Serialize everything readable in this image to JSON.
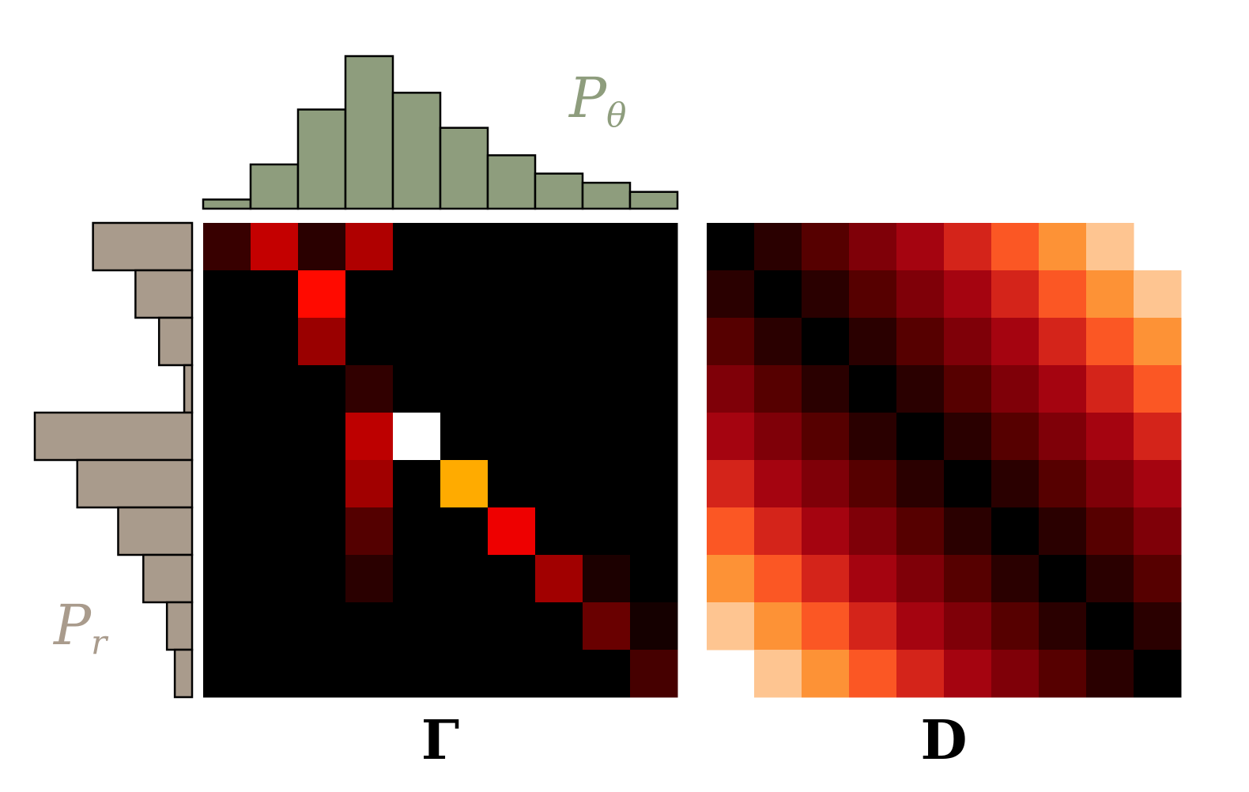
{
  "chart_data": [
    {
      "type": "bar",
      "orientation": "vertical",
      "label_main": "P",
      "label_sub": "θ",
      "color": "#8e9d7d",
      "values": [
        0.06,
        0.29,
        0.65,
        1.0,
        0.76,
        0.53,
        0.35,
        0.23,
        0.17,
        0.11
      ]
    },
    {
      "type": "bar",
      "orientation": "horizontal",
      "label_main": "P",
      "label_sub": "r",
      "color": "#a99b8c",
      "values": [
        0.63,
        0.36,
        0.21,
        0.05,
        1.0,
        0.73,
        0.47,
        0.31,
        0.16,
        0.11
      ]
    },
    {
      "type": "heatmap",
      "title": "Γ",
      "colormap": "hot",
      "matrix": [
        [
          0.08,
          0.28,
          0.06,
          0.25,
          0,
          0,
          0,
          0,
          0,
          0
        ],
        [
          0,
          0,
          0.38,
          0,
          0,
          0,
          0,
          0,
          0,
          0
        ],
        [
          0,
          0,
          0.22,
          0,
          0,
          0,
          0,
          0,
          0,
          0
        ],
        [
          0,
          0,
          0,
          0.07,
          0,
          0,
          0,
          0,
          0,
          0
        ],
        [
          0,
          0,
          0,
          0.27,
          1.0,
          0,
          0,
          0,
          0,
          0
        ],
        [
          0,
          0,
          0,
          0.23,
          0,
          0.62,
          0,
          0,
          0,
          0
        ],
        [
          0,
          0,
          0,
          0.12,
          0,
          0,
          0.34,
          0,
          0,
          0
        ],
        [
          0,
          0,
          0,
          0.06,
          0,
          0,
          0,
          0.23,
          0.04,
          0
        ],
        [
          0,
          0,
          0,
          0,
          0,
          0,
          0,
          0,
          0.15,
          0.03
        ],
        [
          0,
          0,
          0,
          0,
          0,
          0,
          0,
          0,
          0,
          0.1
        ]
      ]
    },
    {
      "type": "heatmap",
      "title": "D",
      "colormap": "hot",
      "matrix": [
        [
          0,
          1,
          2,
          3,
          4,
          5,
          6,
          7,
          8,
          null
        ],
        [
          1,
          0,
          1,
          2,
          3,
          4,
          5,
          6,
          7,
          8
        ],
        [
          2,
          1,
          0,
          1,
          2,
          3,
          4,
          5,
          6,
          7
        ],
        [
          3,
          2,
          1,
          0,
          1,
          2,
          3,
          4,
          5,
          6
        ],
        [
          4,
          3,
          2,
          1,
          0,
          1,
          2,
          3,
          4,
          5
        ],
        [
          5,
          4,
          3,
          2,
          1,
          0,
          1,
          2,
          3,
          4
        ],
        [
          6,
          5,
          4,
          3,
          2,
          1,
          0,
          1,
          2,
          3
        ],
        [
          7,
          6,
          5,
          4,
          3,
          2,
          1,
          0,
          1,
          2
        ],
        [
          8,
          7,
          6,
          5,
          4,
          3,
          2,
          1,
          0,
          1
        ],
        [
          null,
          8,
          7,
          6,
          5,
          4,
          3,
          2,
          1,
          0
        ]
      ],
      "palette": [
        "#000000",
        "#2a0000",
        "#560000",
        "#7f0008",
        "#a50410",
        "#d4241a",
        "#fb5724",
        "#fd9236",
        "#fec591"
      ]
    }
  ]
}
